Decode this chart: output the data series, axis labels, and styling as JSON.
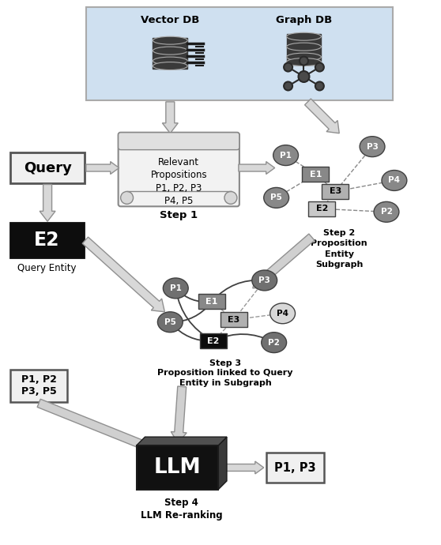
{
  "bg_color": "#ffffff",
  "light_blue_bg": "#cfe0f0",
  "vector_db_label": "Vector DB",
  "graph_db_label": "Graph DB",
  "query_label": "Query",
  "e2_label": "E2",
  "query_entity_label": "Query Entity",
  "step1_label": "Step 1",
  "step2_label": "Step 2\nProposition\nEntity\nSubgraph",
  "step3_label": "Step 3\nProposition linked to Query\nEntity in Subgraph",
  "step4_label": "Step 4\nLLM Re-ranking",
  "llm_label": "LLM",
  "p1p2_label": "P1, P2\nP3, P5",
  "p1p3_label": "P1, P3"
}
